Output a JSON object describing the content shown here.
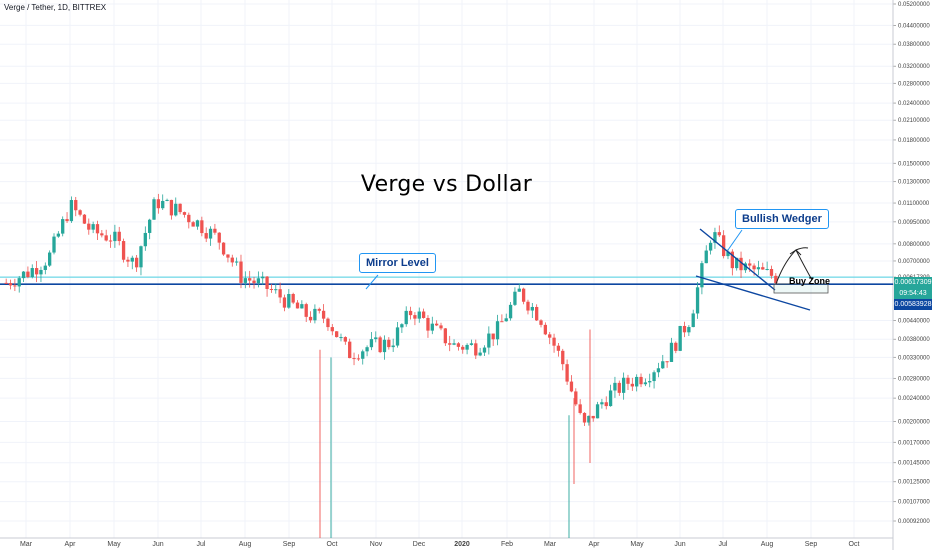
{
  "header": {
    "symbol": "Verge / Tether, 1D, BITTREX"
  },
  "annotations": {
    "title": "Verge vs Dollar",
    "mirror_level": "Mirror Level",
    "bullish_wedge": "Bullish Wedger",
    "buy_zone": "Buy Zone"
  },
  "price_tags": [
    {
      "label": "0.00617309",
      "color": "#26a69a"
    },
    {
      "label": "09:54:43",
      "color": "#26a69a"
    },
    {
      "label": "0.00583928",
      "color": "#0d47a1"
    }
  ],
  "colors": {
    "up": "#26a69a",
    "down": "#ef5350",
    "line": "#1565c0",
    "callout_border": "#2196f3"
  },
  "chart_data": {
    "type": "candlestick",
    "title": "Verge vs Dollar",
    "y_scale": "log",
    "y_ticks": [
      "0.05200000",
      "0.04400000",
      "0.03800000",
      "0.03200000",
      "0.02800000",
      "0.02400000",
      "0.02100000",
      "0.01800000",
      "0.01500000",
      "0.01300000",
      "0.01100000",
      "0.00950000",
      "0.00800000",
      "0.00700000",
      "0.00617309",
      "0.00583928",
      "0.00440000",
      "0.00380000",
      "0.00330000",
      "0.00280000",
      "0.00240000",
      "0.00200000",
      "0.00170000",
      "0.00145000",
      "0.00125000",
      "0.00107000",
      "0.00092000"
    ],
    "x_ticks": [
      "Mar",
      "Apr",
      "May",
      "Jun",
      "Jul",
      "Aug",
      "Sep",
      "Oct",
      "Nov",
      "Dec",
      "2020",
      "Feb",
      "Mar",
      "Apr",
      "May",
      "Jun",
      "Jul",
      "Aug",
      "Sep",
      "Oct"
    ],
    "horizontal_levels": [
      0.00583928,
      0.00617309
    ],
    "series": [
      {
        "points": [
          [
            "Mar",
            0.0059
          ],
          [
            "Mar-mid",
            0.0064
          ],
          [
            "Apr",
            0.0072
          ],
          [
            "Apr-peak",
            0.0108
          ],
          [
            "Apr-late",
            0.0088
          ],
          [
            "May",
            0.0084
          ],
          [
            "May-mid",
            0.0068
          ],
          [
            "May-late",
            0.0112
          ],
          [
            "Jun",
            0.0104
          ],
          [
            "Jun-mid",
            0.0094
          ],
          [
            "Jul",
            0.0082
          ],
          [
            "Jul-mid",
            0.0062
          ],
          [
            "Aug",
            0.0058
          ],
          [
            "Aug-mid",
            0.0052
          ],
          [
            "Sep",
            0.0046
          ],
          [
            "Sep-late",
            0.0045
          ],
          [
            "Oct",
            0.0034
          ],
          [
            "Oct-mid",
            0.0036
          ],
          [
            "Nov",
            0.0037
          ],
          [
            "Nov-mid",
            0.0048
          ],
          [
            "Dec",
            0.0041
          ],
          [
            "Dec-mid",
            0.0036
          ],
          [
            "2020",
            0.0036
          ],
          [
            "Jan-mid",
            0.0041
          ],
          [
            "Feb",
            0.0055
          ],
          [
            "Feb-mid",
            0.0045
          ],
          [
            "Mar",
            0.0032
          ],
          [
            "Mar-crash",
            0.0019
          ],
          [
            "Apr",
            0.0024
          ],
          [
            "Apr-mid",
            0.0027
          ],
          [
            "May",
            0.0029
          ],
          [
            "May-mid",
            0.0034
          ],
          [
            "Jun",
            0.0045
          ],
          [
            "Jun-mid",
            0.0088
          ],
          [
            "Jul",
            0.0068
          ],
          [
            "Jul-mid",
            0.0065
          ],
          [
            "Aug",
            0.0062
          ]
        ]
      }
    ]
  }
}
